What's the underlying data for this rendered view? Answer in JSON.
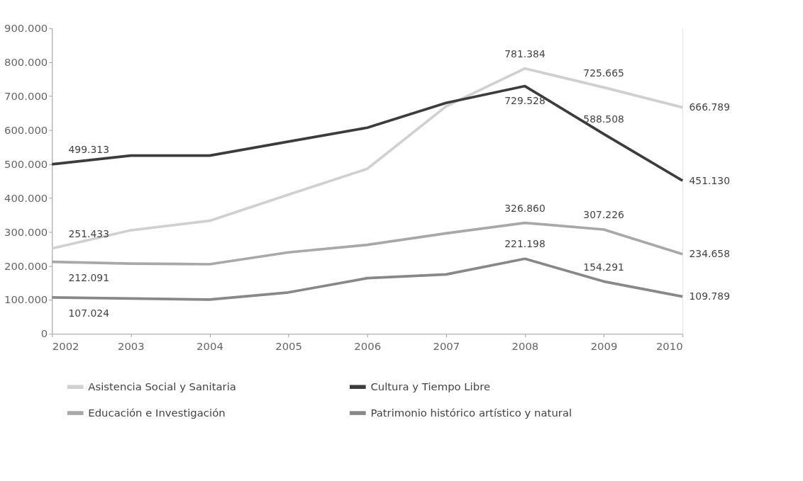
{
  "chart_data": {
    "type": "line",
    "x": [
      2002,
      2003,
      2004,
      2005,
      2006,
      2007,
      2008,
      2009,
      2010
    ],
    "xlim": [
      2002,
      2010
    ],
    "xticks": [
      2002,
      2003,
      2004,
      2005,
      2006,
      2007,
      2008,
      2009,
      2010
    ],
    "ylim": [
      0,
      900000
    ],
    "yticks": [
      {
        "value": 0,
        "label": "0"
      },
      {
        "value": 100000,
        "label": "100.000"
      },
      {
        "value": 200000,
        "label": "200.000"
      },
      {
        "value": 300000,
        "label": "300.000"
      },
      {
        "value": 400000,
        "label": "400.000"
      },
      {
        "value": 500000,
        "label": "500.000"
      },
      {
        "value": 600000,
        "label": "600.000"
      },
      {
        "value": 700000,
        "label": "700.000"
      },
      {
        "value": 800000,
        "label": "800.000"
      },
      {
        "value": 900000,
        "label": "900.000"
      }
    ],
    "grid": "y",
    "legend": "bottom",
    "marker": "none",
    "line_style": "solid",
    "series": [
      {
        "name": "Asistencia Social y Sanitaria",
        "color": "#d0d0d0",
        "values": [
          251433,
          305000,
          333000,
          410000,
          486000,
          670000,
          781384,
          725665,
          666789
        ],
        "value_labels": [
          "251.433",
          null,
          null,
          null,
          null,
          null,
          "781.384",
          "725.665",
          "666.789"
        ]
      },
      {
        "name": "Cultura y Tiempo Libre",
        "color": "#3c3c3c",
        "values": [
          499313,
          525000,
          525000,
          566000,
          607000,
          680000,
          729528,
          588508,
          451130
        ],
        "value_labels": [
          "499.313",
          null,
          null,
          null,
          null,
          null,
          "729.528",
          "588.508",
          "451.130"
        ]
      },
      {
        "name": "Educación e Investigación",
        "color": "#a8a8a8",
        "values": [
          212091,
          207000,
          205000,
          240000,
          262000,
          296000,
          326860,
          307226,
          234658
        ],
        "value_labels": [
          "212.091",
          null,
          null,
          null,
          null,
          null,
          "326.860",
          "307.226",
          "234.658"
        ]
      },
      {
        "name": "Patrimonio histórico artístico y natural",
        "color": "#888888",
        "values": [
          107024,
          104000,
          101000,
          122000,
          164000,
          175000,
          221198,
          154291,
          109789
        ],
        "value_labels": [
          "107.024",
          null,
          null,
          null,
          null,
          null,
          "221.198",
          "154.291",
          "109.789"
        ]
      }
    ]
  }
}
